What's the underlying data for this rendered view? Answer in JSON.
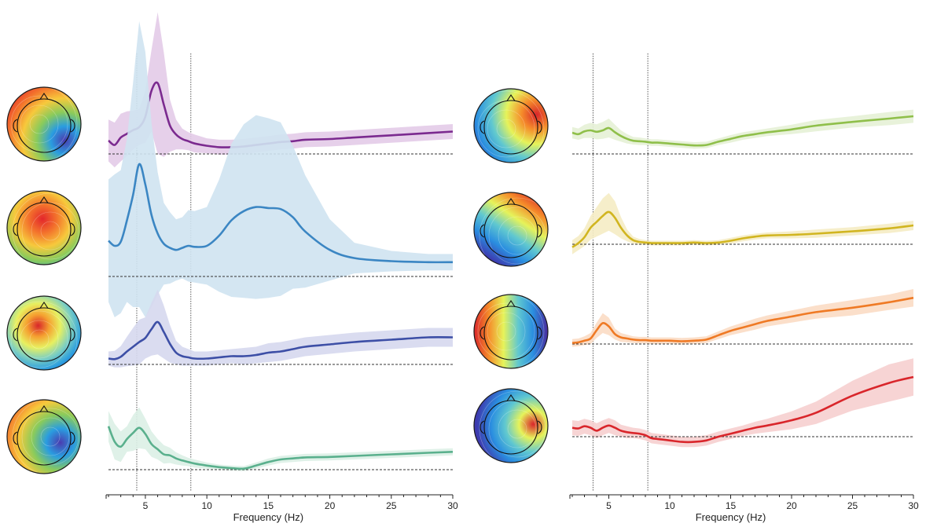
{
  "chart_data": [
    {
      "type": "line",
      "panel": "left",
      "xlabel": "Frequency (Hz)",
      "xlim": [
        2,
        30
      ],
      "xticks": [
        5,
        10,
        15,
        20,
        25,
        30
      ],
      "vlines": [
        4.3,
        8.7
      ],
      "series": [
        {
          "color": "#7b2a8f",
          "band": "#e3cbe8",
          "x": [
            2,
            2.5,
            3,
            3.5,
            4,
            4.5,
            5,
            5.5,
            6,
            6.5,
            7,
            7.5,
            8,
            8.5,
            9,
            10,
            11,
            12,
            13,
            14,
            15,
            16,
            17,
            18,
            20,
            22,
            25,
            28,
            30
          ],
          "y": [
            0.18,
            0.12,
            0.22,
            0.27,
            0.32,
            0.36,
            0.5,
            0.85,
            0.95,
            0.66,
            0.38,
            0.26,
            0.2,
            0.17,
            0.14,
            0.11,
            0.09,
            0.09,
            0.1,
            0.12,
            0.14,
            0.16,
            0.17,
            0.19,
            0.2,
            0.22,
            0.25,
            0.28,
            0.3
          ],
          "band_width": [
            0.28,
            0.3,
            0.32,
            0.3,
            0.26,
            0.24,
            0.35,
            0.55,
            0.95,
            0.7,
            0.35,
            0.2,
            0.14,
            0.12,
            0.12,
            0.1,
            0.1,
            0.1,
            0.1,
            0.1,
            0.1,
            0.1,
            0.1,
            0.1,
            0.1,
            0.1,
            0.1,
            0.1,
            0.1
          ]
        },
        {
          "color": "#3b86c3",
          "band": "#cfe3f1",
          "x": [
            2,
            2.5,
            3,
            3.5,
            4,
            4.5,
            5,
            5.5,
            6,
            6.5,
            7,
            7.5,
            8,
            8.5,
            9,
            10,
            11,
            12,
            13,
            14,
            15,
            16,
            17,
            18,
            20,
            22,
            25,
            28,
            30
          ],
          "y": [
            0.35,
            0.3,
            0.34,
            0.55,
            0.8,
            1.1,
            0.9,
            0.6,
            0.42,
            0.32,
            0.28,
            0.26,
            0.28,
            0.3,
            0.29,
            0.3,
            0.4,
            0.55,
            0.64,
            0.68,
            0.67,
            0.66,
            0.58,
            0.44,
            0.26,
            0.18,
            0.15,
            0.14,
            0.14
          ],
          "band_width": [
            0.6,
            0.7,
            0.7,
            0.8,
            1.1,
            1.4,
            1.3,
            0.9,
            0.6,
            0.4,
            0.35,
            0.3,
            0.3,
            0.35,
            0.35,
            0.38,
            0.55,
            0.75,
            0.85,
            0.9,
            0.88,
            0.85,
            0.7,
            0.55,
            0.3,
            0.15,
            0.1,
            0.08,
            0.08
          ]
        },
        {
          "color": "#3d4fa6",
          "band": "#d6d8ee",
          "x": [
            2,
            2.5,
            3,
            3.5,
            4,
            4.5,
            5,
            5.5,
            6,
            6.5,
            7,
            7.5,
            8,
            8.5,
            9,
            10,
            11,
            12,
            13,
            14,
            15,
            16,
            17,
            18,
            20,
            22,
            25,
            28,
            30
          ],
          "y": [
            0.1,
            0.09,
            0.13,
            0.22,
            0.3,
            0.38,
            0.45,
            0.6,
            0.72,
            0.55,
            0.35,
            0.2,
            0.14,
            0.12,
            0.1,
            0.1,
            0.12,
            0.14,
            0.14,
            0.16,
            0.2,
            0.22,
            0.26,
            0.3,
            0.34,
            0.38,
            0.42,
            0.46,
            0.46
          ],
          "band_width": [
            0.12,
            0.14,
            0.18,
            0.25,
            0.32,
            0.38,
            0.35,
            0.45,
            0.55,
            0.45,
            0.32,
            0.2,
            0.16,
            0.14,
            0.12,
            0.12,
            0.12,
            0.12,
            0.14,
            0.14,
            0.16,
            0.16,
            0.16,
            0.16,
            0.16,
            0.16,
            0.16,
            0.16,
            0.16
          ]
        },
        {
          "color": "#5ab08d",
          "band": "#dcefe5",
          "x": [
            2,
            2.5,
            3,
            3.5,
            4,
            4.5,
            5,
            5.5,
            6,
            6.5,
            7,
            7.5,
            8,
            8.5,
            9,
            10,
            11,
            12,
            13,
            14,
            15,
            16,
            17,
            18,
            20,
            22,
            25,
            28,
            30
          ],
          "y": [
            0.85,
            0.55,
            0.45,
            0.6,
            0.72,
            0.82,
            0.7,
            0.5,
            0.4,
            0.3,
            0.28,
            0.22,
            0.18,
            0.15,
            0.12,
            0.08,
            0.05,
            0.03,
            0.02,
            0.08,
            0.15,
            0.2,
            0.22,
            0.24,
            0.25,
            0.27,
            0.3,
            0.33,
            0.35
          ],
          "band_width": [
            0.3,
            0.35,
            0.3,
            0.25,
            0.35,
            0.4,
            0.3,
            0.25,
            0.2,
            0.18,
            0.15,
            0.12,
            0.1,
            0.08,
            0.08,
            0.06,
            0.05,
            0.05,
            0.05,
            0.06,
            0.07,
            0.07,
            0.07,
            0.07,
            0.07,
            0.07,
            0.07,
            0.07,
            0.07
          ]
        }
      ]
    },
    {
      "type": "line",
      "panel": "right",
      "xlabel": "Frequency (Hz)",
      "xlim": [
        2,
        30
      ],
      "xticks": [
        5,
        10,
        15,
        20,
        25,
        30
      ],
      "vlines": [
        3.7,
        8.2
      ],
      "series": [
        {
          "color": "#8fbf4a",
          "band": "#e6f1d6",
          "x": [
            2,
            2.5,
            3,
            3.5,
            4,
            4.5,
            5,
            5.5,
            6,
            6.5,
            7,
            7.5,
            8,
            8.5,
            9,
            10,
            11,
            12,
            13,
            14,
            15,
            16,
            17,
            18,
            20,
            22,
            25,
            28,
            30
          ],
          "y": [
            0.45,
            0.42,
            0.48,
            0.5,
            0.47,
            0.5,
            0.55,
            0.46,
            0.38,
            0.32,
            0.28,
            0.27,
            0.26,
            0.24,
            0.24,
            0.22,
            0.2,
            0.18,
            0.19,
            0.26,
            0.32,
            0.38,
            0.42,
            0.46,
            0.52,
            0.6,
            0.68,
            0.75,
            0.8
          ],
          "band_width": [
            0.12,
            0.12,
            0.14,
            0.16,
            0.16,
            0.18,
            0.2,
            0.16,
            0.12,
            0.1,
            0.08,
            0.08,
            0.07,
            0.07,
            0.07,
            0.07,
            0.07,
            0.07,
            0.07,
            0.07,
            0.08,
            0.08,
            0.08,
            0.08,
            0.1,
            0.12,
            0.12,
            0.14,
            0.14
          ]
        },
        {
          "color": "#d1b520",
          "band": "#f5ecc4",
          "x": [
            2,
            2.5,
            3,
            3.5,
            4,
            4.5,
            5,
            5.5,
            6,
            6.5,
            7,
            7.5,
            8,
            8.5,
            9,
            10,
            11,
            12,
            13,
            14,
            15,
            16,
            17,
            18,
            20,
            22,
            25,
            28,
            30
          ],
          "y": [
            -0.05,
            0.02,
            0.12,
            0.28,
            0.38,
            0.48,
            0.55,
            0.45,
            0.28,
            0.15,
            0.07,
            0.04,
            0.03,
            0.02,
            0.02,
            0.02,
            0.02,
            0.03,
            0.02,
            0.03,
            0.06,
            0.1,
            0.13,
            0.15,
            0.16,
            0.18,
            0.22,
            0.27,
            0.32
          ],
          "band_width": [
            0.12,
            0.12,
            0.15,
            0.2,
            0.25,
            0.3,
            0.32,
            0.28,
            0.18,
            0.1,
            0.06,
            0.05,
            0.04,
            0.04,
            0.04,
            0.04,
            0.04,
            0.04,
            0.04,
            0.04,
            0.05,
            0.05,
            0.05,
            0.05,
            0.06,
            0.07,
            0.07,
            0.08,
            0.08
          ]
        },
        {
          "color": "#ef7a25",
          "band": "#fbdcc4",
          "x": [
            2,
            2.5,
            3,
            3.5,
            4,
            4.5,
            5,
            5.5,
            6,
            6.5,
            7,
            7.5,
            8,
            8.5,
            9,
            10,
            11,
            12,
            13,
            14,
            15,
            16,
            17,
            18,
            20,
            22,
            25,
            28,
            30
          ],
          "y": [
            0.02,
            0.03,
            0.06,
            0.1,
            0.25,
            0.38,
            0.32,
            0.18,
            0.12,
            0.1,
            0.08,
            0.07,
            0.07,
            0.06,
            0.06,
            0.06,
            0.05,
            0.06,
            0.08,
            0.16,
            0.24,
            0.3,
            0.36,
            0.42,
            0.5,
            0.58,
            0.66,
            0.76,
            0.84
          ],
          "band_width": [
            0.07,
            0.07,
            0.08,
            0.1,
            0.14,
            0.18,
            0.16,
            0.1,
            0.08,
            0.07,
            0.06,
            0.06,
            0.06,
            0.06,
            0.06,
            0.06,
            0.06,
            0.06,
            0.06,
            0.07,
            0.08,
            0.09,
            0.1,
            0.1,
            0.11,
            0.12,
            0.14,
            0.14,
            0.16
          ]
        },
        {
          "color": "#d9262b",
          "band": "#f6cfcf",
          "x": [
            2,
            2.5,
            3,
            3.5,
            4,
            4.5,
            5,
            5.5,
            6,
            6.5,
            7,
            7.5,
            8,
            8.5,
            9,
            10,
            11,
            12,
            13,
            14,
            15,
            16,
            17,
            18,
            20,
            22,
            25,
            28,
            30
          ],
          "y": [
            0.12,
            0.11,
            0.14,
            0.12,
            0.08,
            0.12,
            0.15,
            0.12,
            0.08,
            0.06,
            0.05,
            0.04,
            0.02,
            -0.02,
            -0.03,
            -0.05,
            -0.07,
            -0.07,
            -0.05,
            0.0,
            0.04,
            0.08,
            0.12,
            0.15,
            0.22,
            0.32,
            0.55,
            0.72,
            0.8
          ],
          "band_width": [
            0.1,
            0.1,
            0.1,
            0.1,
            0.1,
            0.1,
            0.1,
            0.1,
            0.08,
            0.08,
            0.07,
            0.07,
            0.07,
            0.07,
            0.07,
            0.07,
            0.07,
            0.07,
            0.07,
            0.07,
            0.07,
            0.07,
            0.08,
            0.09,
            0.12,
            0.15,
            0.2,
            0.25,
            0.25
          ]
        }
      ]
    }
  ],
  "topomaps": [
    {
      "stops": [
        "#e3262c",
        "#f3722c",
        "#f7c93c",
        "#8acb5b",
        "#2a9de0",
        "#4a3cb0"
      ],
      "hot": "low-right-blue"
    },
    {
      "stops": [
        "#4a3cb0",
        "#2a9de0",
        "#8acb5b",
        "#f7c93c",
        "#f3722c",
        "#e3262c"
      ],
      "hot": "center-red"
    },
    {
      "stops": [
        "#4a3cb0",
        "#2a9de0",
        "#7fd0c0",
        "#e8f060",
        "#f5a030",
        "#d8262b"
      ],
      "hot": "left-red-spots"
    },
    {
      "stops": [
        "#e3262c",
        "#f3722c",
        "#f7c93c",
        "#8acb5b",
        "#2a9de0",
        "#4a3cb0"
      ],
      "hot": "mid-right-blue"
    },
    {
      "stops": [
        "#3d3cb0",
        "#2a8ee0",
        "#60c8d0",
        "#e6f35a",
        "#f58c2a",
        "#d9262b"
      ],
      "hot": "right-red"
    },
    {
      "stops": [
        "#3d3cb0",
        "#2a8ee0",
        "#60c8d0",
        "#e6f35a",
        "#f58c2a",
        "#d9262b"
      ],
      "hot": "top-right-red"
    },
    {
      "stops": [
        "#d9262b",
        "#f58c2a",
        "#e6f35a",
        "#60c8d0",
        "#2a8ee0",
        "#4a2a9c"
      ],
      "hot": "left-red"
    },
    {
      "stops": [
        "#4a2a9c",
        "#3d3cb0",
        "#2a8ee0",
        "#60c8d0",
        "#e6f35a",
        "#d9262b"
      ],
      "hot": "right-red-spot"
    }
  ]
}
